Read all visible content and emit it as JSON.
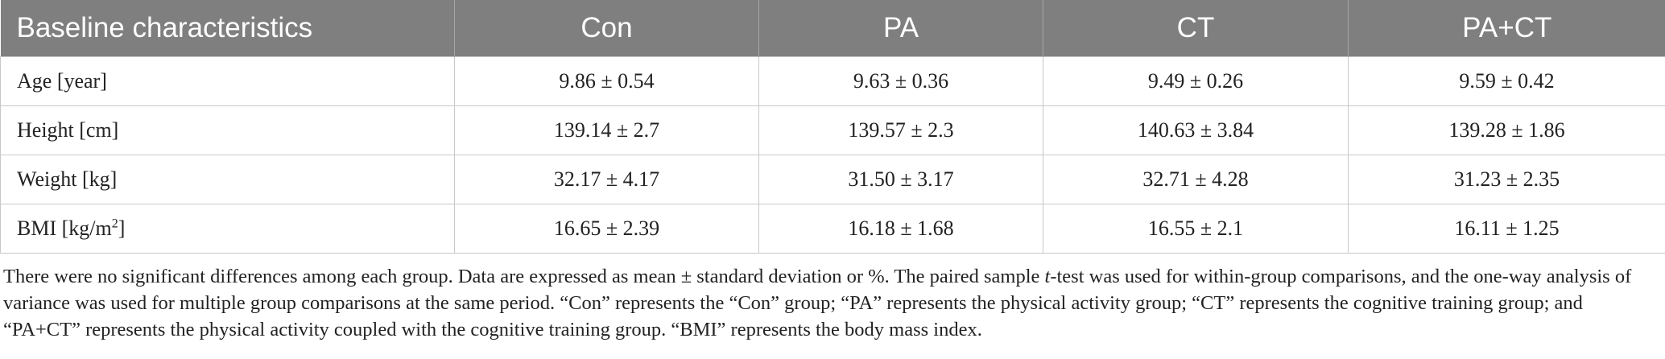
{
  "table": {
    "headers": [
      "Baseline characteristics",
      "Con",
      "PA",
      "CT",
      "PA+CT"
    ],
    "rows": [
      {
        "label": "Age [year]",
        "values": [
          "9.86 ± 0.54",
          "9.63 ± 0.36",
          "9.49 ± 0.26",
          "9.59 ± 0.42"
        ]
      },
      {
        "label": "Height [cm]",
        "values": [
          "139.14 ± 2.7",
          "139.57 ± 2.3",
          "140.63 ± 3.84",
          "139.28 ± 1.86"
        ]
      },
      {
        "label": "Weight [kg]",
        "values": [
          "32.17 ± 4.17",
          "31.50 ± 3.17",
          "32.71 ± 4.28",
          "31.23 ± 2.35"
        ]
      },
      {
        "label_prefix": "BMI [kg/m",
        "label_sup": "2",
        "label_suffix": "]",
        "values": [
          "16.65 ± 2.39",
          "16.18 ± 1.68",
          "16.55 ± 2.1",
          "16.11 ± 1.25"
        ]
      }
    ]
  },
  "footnote": {
    "part1": "There were no significant differences among each group. Data are expressed as mean ± standard deviation or %. The paired sample ",
    "italic": "t",
    "part2": "-test was used for within-group comparisons, and the one-way analysis of variance was used for multiple group comparisons at the same period. “Con” represents the “Con” group; “PA” represents the physical activity group; “CT” represents the cognitive training group; and “PA+CT” represents the physical activity coupled with the cognitive training group. “BMI” represents the body mass index."
  }
}
